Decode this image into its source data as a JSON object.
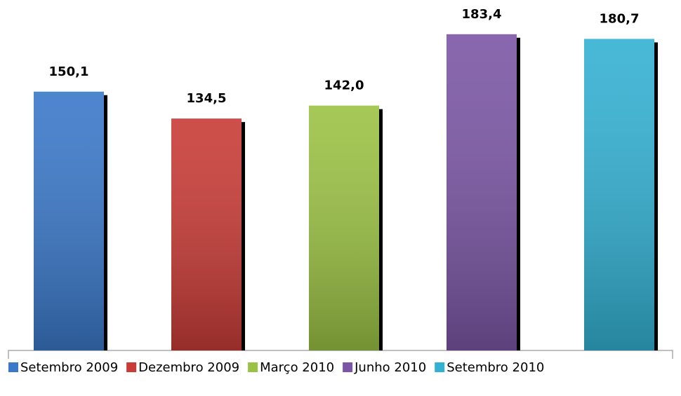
{
  "chart_data": {
    "type": "bar",
    "series": [
      {
        "name": "Setembro 2009",
        "color": "#3a78c9",
        "values": [
          150.1
        ],
        "value_labels": [
          "150,1"
        ]
      },
      {
        "name": "Dezembro 2009",
        "color": "#c83b36",
        "values": [
          134.5
        ],
        "value_labels": [
          "134,5"
        ]
      },
      {
        "name": "Março 2010",
        "color": "#9bc244",
        "values": [
          142.0
        ],
        "value_labels": [
          "142,0"
        ]
      },
      {
        "name": "Junho 2010",
        "color": "#7b56a5",
        "values": [
          183.4
        ],
        "value_labels": [
          "183,4"
        ]
      },
      {
        "name": "Setembro 2010",
        "color": "#33b1d3",
        "values": [
          180.7
        ],
        "value_labels": [
          "180,7"
        ]
      }
    ],
    "ylim": [
      0,
      200
    ],
    "legend": "bottom"
  }
}
